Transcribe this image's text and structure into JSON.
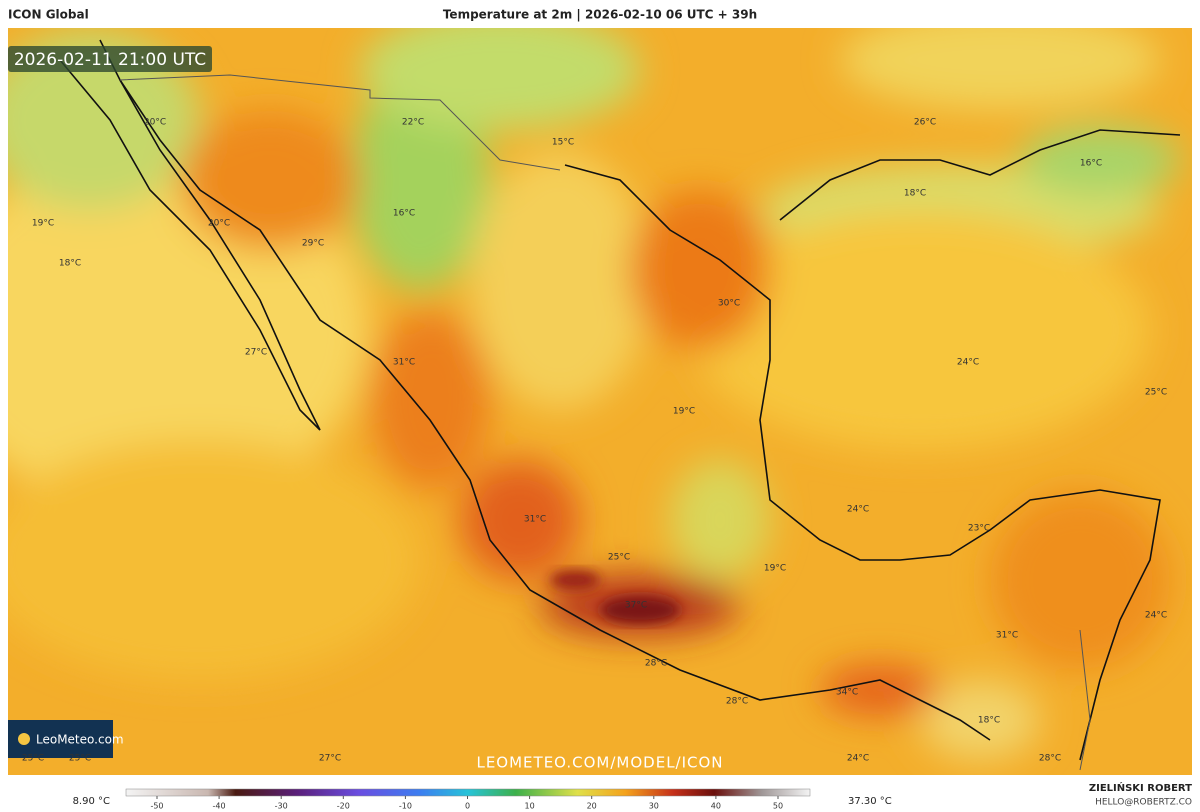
{
  "header": {
    "model": "ICON Global",
    "title": "Temperature at 2m | 2026-02-10 06 UTC + 39h",
    "valid_time": "2026-02-11 21:00 UTC"
  },
  "map": {
    "labels": [
      "20°C",
      "22°C",
      "15°C",
      "26°C",
      "16°C",
      "18°C",
      "19°C",
      "20°C",
      "16°C",
      "29°C",
      "18°C",
      "30°C",
      "27°C",
      "31°C",
      "24°C",
      "25°C",
      "19°C",
      "24°C",
      "23°C",
      "31°C",
      "25°C",
      "19°C",
      "37°C",
      "24°C",
      "31°C",
      "28°C",
      "34°C",
      "28°C",
      "18°C",
      "25°C",
      "25°C",
      "27°C",
      "24°C",
      "28°C"
    ]
  },
  "branding": {
    "logo": "LeoMeteo.com",
    "url": "LEOMETEO.COM/MODEL/ICON",
    "author": "ZIELIŃSKI ROBERT",
    "email": "HELLO@ROBERTZ.CO"
  },
  "colorbar": {
    "min_label": "8.90 °C",
    "max_label": "37.30 °C",
    "ticks": [
      -50,
      -40,
      -30,
      -20,
      -10,
      0,
      10,
      20,
      30,
      40,
      50
    ]
  }
}
